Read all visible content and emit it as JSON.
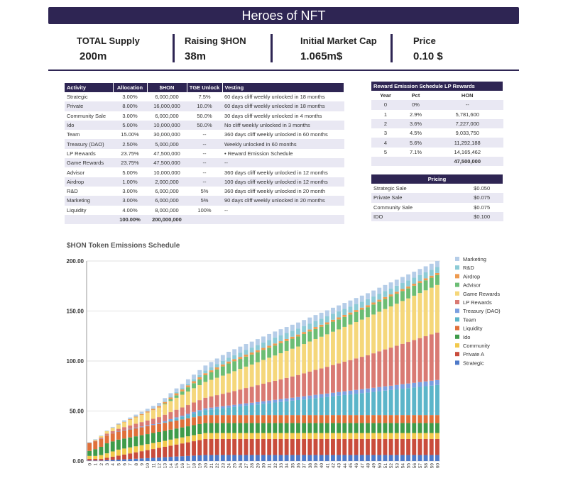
{
  "header": {
    "title": "Heroes of NFT"
  },
  "stats": [
    {
      "label": "TOTAL Supply",
      "value": "200m"
    },
    {
      "label": "Raising $HON",
      "value": "38m"
    },
    {
      "label": "Initial Market Cap",
      "value": "1.065m$"
    },
    {
      "label": "Price",
      "value": "0.10 $"
    }
  ],
  "allocation": {
    "headers": [
      "Activity",
      "Allocation",
      "$HON",
      "TGE Unlock",
      "Vesting"
    ],
    "rows": [
      [
        "Strategic",
        "3.00%",
        "6,000,000",
        "7.5%",
        "60 days cliff weekly unlocked in 18 months"
      ],
      [
        "Private",
        "8.00%",
        "16,000,000",
        "10.0%",
        "60 days cliff weekly unlocked in 18 months"
      ],
      [
        "Community Sale",
        "3.00%",
        "6,000,000",
        "50.0%",
        "30 days cliff weekly unlocked in 4 months"
      ],
      [
        "Ido",
        "5.00%",
        "10,000,000",
        "50.0%",
        "No cliff weekly unlocked in 3 months"
      ],
      [
        "Team",
        "15.00%",
        "30,000,000",
        "--",
        "360 days cliff weekly unlocked in 60 months"
      ],
      [
        "Treasury (DAO)",
        "2.50%",
        "5,000,000",
        "--",
        "Weekly unlocked in 60 months"
      ],
      [
        "LP Rewards",
        "23.75%",
        "47,500,000",
        "--",
        "• Reward Emission Schedule"
      ],
      [
        "Game Rewards",
        "23.75%",
        "47,500,000",
        "--",
        "--"
      ],
      [
        "Advisor",
        "5.00%",
        "10,000,000",
        "--",
        "360 days cliff weekly unlocked in 12 months"
      ],
      [
        "Airdrop",
        "1.00%",
        "2,000,000",
        "--",
        "100 days cliff weekly unlocked in 12 months"
      ],
      [
        "R&D",
        "3.00%",
        "6,000,000",
        "5%",
        "360 days cliff weekly unlocked in 20 month"
      ],
      [
        "Marketing",
        "3.00%",
        "6,000,000",
        "5%",
        "90 days cliff weekly unlocked in 20 months"
      ],
      [
        "Liquidity",
        "4.00%",
        "8,000,000",
        "100%",
        "--"
      ]
    ],
    "total": [
      "",
      "100.00%",
      "200,000,000",
      "",
      ""
    ]
  },
  "lp": {
    "title": "Reward Emission Schedule LP Rewards",
    "headers": [
      "Year",
      "Pct",
      "HON"
    ],
    "rows": [
      [
        "0",
        "0%",
        "--"
      ],
      [
        "1",
        "2.9%",
        "5,781,600"
      ],
      [
        "2",
        "3.6%",
        "7,227,000"
      ],
      [
        "3",
        "4.5%",
        "9,033,750"
      ],
      [
        "4",
        "5.6%",
        "11,292,188"
      ],
      [
        "5",
        "7.1%",
        "14,165,462"
      ]
    ],
    "total": "47,500,000"
  },
  "pricing": {
    "title": "Pricing",
    "rows": [
      [
        "Strategic Sale",
        "$0.050"
      ],
      [
        "Private Sale",
        "$0.075"
      ],
      [
        "Community Sale",
        "$0.075"
      ],
      [
        "IDO",
        "$0.100"
      ]
    ]
  },
  "chart_data": {
    "type": "bar",
    "stacked": true,
    "title": "$HON Token Emissions Schedule",
    "ylim": [
      0,
      200
    ],
    "yticks": [
      "0.00",
      "50.00",
      "100.00",
      "150.00",
      "200.00"
    ],
    "grid": true,
    "legend": "right",
    "x_range": [
      0,
      60
    ],
    "series": [
      {
        "name": "Strategic",
        "color": "#4e79c8",
        "values": [
          0.5,
          0.5,
          0.5,
          0.8,
          1.1,
          1.4,
          1.7,
          2.0,
          2.3,
          2.6,
          2.9,
          3.2,
          3.5,
          3.8,
          4.2,
          4.5,
          4.8,
          5.1,
          5.4,
          5.7,
          6,
          6,
          6,
          6,
          6,
          6,
          6,
          6,
          6,
          6,
          6,
          6,
          6,
          6,
          6,
          6,
          6,
          6,
          6,
          6,
          6,
          6,
          6,
          6,
          6,
          6,
          6,
          6,
          6,
          6,
          6,
          6,
          6,
          6,
          6,
          6,
          6,
          6,
          6,
          6,
          6
        ]
      },
      {
        "name": "Private A",
        "color": "#c94c3c",
        "values": [
          1.6,
          1.6,
          1.6,
          2.4,
          3.2,
          4.0,
          4.8,
          5.6,
          6.4,
          7.2,
          8.0,
          8.8,
          9.6,
          10.4,
          11.2,
          12.0,
          12.8,
          13.6,
          14.4,
          15.2,
          16,
          16,
          16,
          16,
          16,
          16,
          16,
          16,
          16,
          16,
          16,
          16,
          16,
          16,
          16,
          16,
          16,
          16,
          16,
          16,
          16,
          16,
          16,
          16,
          16,
          16,
          16,
          16,
          16,
          16,
          16,
          16,
          16,
          16,
          16,
          16,
          16,
          16,
          16,
          16,
          16
        ]
      },
      {
        "name": "Community",
        "color": "#f2c94c",
        "values": [
          3,
          3,
          3.8,
          4.5,
          5.3,
          6,
          6,
          6,
          6,
          6,
          6,
          6,
          6,
          6,
          6,
          6,
          6,
          6,
          6,
          6,
          6,
          6,
          6,
          6,
          6,
          6,
          6,
          6,
          6,
          6,
          6,
          6,
          6,
          6,
          6,
          6,
          6,
          6,
          6,
          6,
          6,
          6,
          6,
          6,
          6,
          6,
          6,
          6,
          6,
          6,
          6,
          6,
          6,
          6,
          6,
          6,
          6,
          6,
          6,
          6,
          6
        ]
      },
      {
        "name": "Ido",
        "color": "#3f9b4a",
        "values": [
          5,
          6.7,
          8.3,
          10,
          10,
          10,
          10,
          10,
          10,
          10,
          10,
          10,
          10,
          10,
          10,
          10,
          10,
          10,
          10,
          10,
          10,
          10,
          10,
          10,
          10,
          10,
          10,
          10,
          10,
          10,
          10,
          10,
          10,
          10,
          10,
          10,
          10,
          10,
          10,
          10,
          10,
          10,
          10,
          10,
          10,
          10,
          10,
          10,
          10,
          10,
          10,
          10,
          10,
          10,
          10,
          10,
          10,
          10,
          10,
          10,
          10
        ]
      },
      {
        "name": "Liquidity",
        "color": "#e0703a",
        "values": [
          8,
          8,
          8,
          8,
          8,
          8,
          8,
          8,
          8,
          8,
          8,
          8,
          8,
          8,
          8,
          8,
          8,
          8,
          8,
          8,
          8,
          8,
          8,
          8,
          8,
          8,
          8,
          8,
          8,
          8,
          8,
          8,
          8,
          8,
          8,
          8,
          8,
          8,
          8,
          8,
          8,
          8,
          8,
          8,
          8,
          8,
          8,
          8,
          8,
          8,
          8,
          8,
          8,
          8,
          8,
          8,
          8,
          8,
          8,
          8,
          8
        ]
      },
      {
        "name": "Team",
        "color": "#5bb5c9",
        "values": [
          0,
          0,
          0,
          0,
          0,
          0,
          0,
          0,
          0,
          0,
          0,
          0,
          0,
          0.6,
          1.3,
          1.9,
          2.5,
          3.1,
          3.8,
          4.4,
          5.0,
          5.6,
          6.3,
          6.9,
          7.5,
          8.1,
          8.8,
          9.4,
          10.0,
          10.6,
          11.3,
          11.9,
          12.5,
          13.1,
          13.8,
          14.4,
          15.0,
          15.6,
          16.3,
          16.9,
          17.5,
          18.1,
          18.8,
          19.4,
          20.0,
          20.6,
          21.3,
          21.9,
          22.5,
          23.1,
          23.8,
          24.4,
          25.0,
          25.6,
          26.3,
          26.9,
          27.5,
          28.1,
          28.8,
          29.4,
          30
        ]
      },
      {
        "name": "Treasury (DAO)",
        "color": "#7b9fe0",
        "values": [
          0,
          0.1,
          0.2,
          0.3,
          0.3,
          0.4,
          0.5,
          0.6,
          0.7,
          0.8,
          0.8,
          0.9,
          1.0,
          1.1,
          1.2,
          1.3,
          1.3,
          1.4,
          1.5,
          1.6,
          1.7,
          1.8,
          1.8,
          1.9,
          2.0,
          2.1,
          2.2,
          2.3,
          2.3,
          2.4,
          2.5,
          2.6,
          2.7,
          2.8,
          2.8,
          2.9,
          3.0,
          3.1,
          3.2,
          3.3,
          3.3,
          3.4,
          3.5,
          3.6,
          3.7,
          3.8,
          3.8,
          3.9,
          4.0,
          4.1,
          4.2,
          4.3,
          4.3,
          4.4,
          4.5,
          4.6,
          4.7,
          4.8,
          4.8,
          4.9,
          5.0
        ]
      },
      {
        "name": "LP Rewards",
        "color": "#d97a73",
        "values": [
          0,
          0.5,
          1.0,
          1.4,
          1.9,
          2.4,
          2.9,
          3.4,
          3.9,
          4.3,
          4.8,
          5.3,
          5.8,
          6.4,
          7.0,
          7.6,
          8.2,
          8.8,
          9.4,
          10.0,
          10.6,
          11.2,
          11.8,
          12.4,
          13.0,
          13.8,
          14.5,
          15.3,
          16.0,
          16.8,
          17.5,
          18.3,
          19.0,
          19.8,
          20.5,
          21.3,
          22.0,
          23.0,
          23.9,
          24.9,
          25.8,
          26.7,
          27.7,
          28.6,
          29.6,
          30.5,
          31.5,
          32.4,
          33.3,
          34.5,
          35.7,
          36.9,
          38.1,
          39.3,
          40.4,
          41.6,
          42.8,
          44.0,
          45.2,
          46.3,
          47.5
        ]
      },
      {
        "name": "Game Rewards",
        "color": "#f5d77a",
        "values": [
          0,
          0.8,
          1.6,
          2.4,
          3.2,
          4.0,
          4.8,
          5.5,
          6.3,
          7.1,
          7.9,
          8.7,
          9.5,
          10.3,
          11.1,
          11.9,
          12.7,
          13.5,
          14.3,
          15.0,
          15.8,
          16.6,
          17.4,
          18.2,
          19.0,
          19.8,
          20.6,
          21.4,
          22.2,
          23.0,
          23.8,
          24.5,
          25.3,
          26.1,
          26.9,
          27.7,
          28.5,
          29.3,
          30.1,
          30.9,
          31.7,
          32.5,
          33.3,
          34.0,
          34.8,
          35.6,
          36.4,
          37.2,
          38.0,
          38.8,
          39.6,
          40.4,
          41.2,
          42.0,
          42.8,
          43.5,
          44.3,
          45.1,
          45.9,
          46.7,
          47.5
        ]
      },
      {
        "name": "Advisor",
        "color": "#6cbd74",
        "values": [
          0,
          0,
          0,
          0,
          0,
          0,
          0,
          0,
          0,
          0,
          0,
          0,
          0,
          0.8,
          1.7,
          2.5,
          3.3,
          4.2,
          5.0,
          5.8,
          6.7,
          7.5,
          8.3,
          9.2,
          10,
          10,
          10,
          10,
          10,
          10,
          10,
          10,
          10,
          10,
          10,
          10,
          10,
          10,
          10,
          10,
          10,
          10,
          10,
          10,
          10,
          10,
          10,
          10,
          10,
          10,
          10,
          10,
          10,
          10,
          10,
          10,
          10,
          10,
          10,
          10,
          10
        ]
      },
      {
        "name": "Airdrop",
        "color": "#ee9a4f",
        "values": [
          0,
          0,
          0,
          0,
          0.2,
          0.3,
          0.5,
          0.7,
          0.8,
          1.0,
          1.2,
          1.3,
          1.5,
          1.7,
          1.8,
          2,
          2,
          2,
          2,
          2,
          2,
          2,
          2,
          2,
          2,
          2,
          2,
          2,
          2,
          2,
          2,
          2,
          2,
          2,
          2,
          2,
          2,
          2,
          2,
          2,
          2,
          2,
          2,
          2,
          2,
          2,
          2,
          2,
          2,
          2,
          2,
          2,
          2,
          2,
          2,
          2,
          2,
          2,
          2,
          2,
          2
        ]
      },
      {
        "name": "R&D",
        "color": "#8ccbd6",
        "values": [
          0.3,
          0.3,
          0.3,
          0.3,
          0.3,
          0.3,
          0.3,
          0.3,
          0.3,
          0.3,
          0.3,
          0.3,
          0.3,
          0.6,
          0.9,
          1.2,
          1.4,
          1.7,
          2.0,
          2.3,
          2.6,
          2.9,
          3.2,
          3.4,
          3.7,
          4.0,
          4.3,
          4.6,
          4.9,
          5.1,
          5.4,
          5.7,
          6,
          6,
          6,
          6,
          6,
          6,
          6,
          6,
          6,
          6,
          6,
          6,
          6,
          6,
          6,
          6,
          6,
          6,
          6,
          6,
          6,
          6,
          6,
          6,
          6,
          6,
          6,
          6,
          6
        ]
      },
      {
        "name": "Marketing",
        "color": "#b5cde8",
        "values": [
          0.3,
          0.3,
          0.3,
          0.3,
          0.6,
          0.9,
          1.2,
          1.4,
          1.7,
          2.0,
          2.3,
          2.6,
          2.9,
          3.2,
          3.4,
          3.7,
          4.0,
          4.3,
          4.6,
          4.9,
          5.1,
          5.4,
          5.7,
          6,
          6,
          6,
          6,
          6,
          6,
          6,
          6,
          6,
          6,
          6,
          6,
          6,
          6,
          6,
          6,
          6,
          6,
          6,
          6,
          6,
          6,
          6,
          6,
          6,
          6,
          6,
          6,
          6,
          6,
          6,
          6,
          6,
          6,
          6,
          6,
          6,
          6
        ]
      }
    ]
  }
}
